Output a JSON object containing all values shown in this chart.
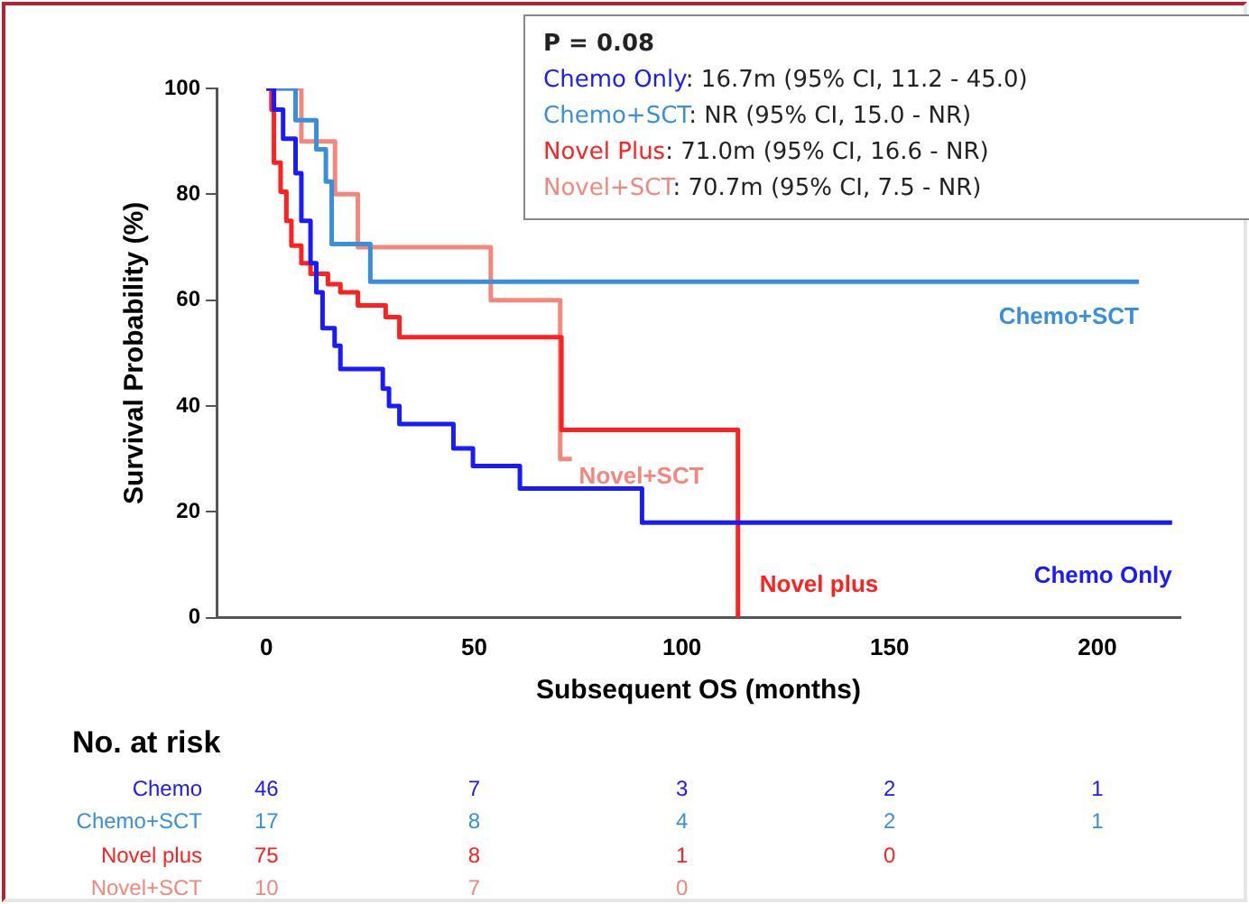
{
  "chart_data": {
    "type": "step",
    "xlabel": "Subsequent OS (months)",
    "ylabel": "Survival Probability (%)",
    "xlim": [
      -12,
      220
    ],
    "xticks": [
      0,
      50,
      100,
      150,
      200
    ],
    "ylim": [
      0,
      100
    ],
    "yticks": [
      0,
      20,
      40,
      60,
      80,
      100
    ],
    "grid": false,
    "legend": false,
    "series": [
      {
        "name": "Chemo Only",
        "color": "#1a1aff",
        "x": [
          0,
          1.8,
          4,
          7,
          8.4,
          10.6,
          12,
          13.5,
          16.4,
          17.8,
          28,
          29.5,
          32,
          45,
          49.7,
          61,
          90.4,
          218
        ],
        "values": [
          100,
          96,
          90.5,
          84,
          75,
          67,
          61.5,
          54.7,
          51.4,
          47,
          43.3,
          40,
          36.6,
          32,
          28.7,
          24.4,
          18,
          18
        ]
      },
      {
        "name": "Chemo+SCT",
        "color": "#3a8fdc",
        "x": [
          0,
          7,
          12,
          14.3,
          15.7,
          25,
          210
        ],
        "values": [
          100,
          94,
          88.5,
          82.4,
          70.6,
          63.5,
          63.5
        ]
      },
      {
        "name": "Novel plus",
        "color": "#ff2020",
        "x": [
          0,
          1.2,
          1.8,
          3.4,
          4.8,
          6,
          8.4,
          10.6,
          14.8,
          17.8,
          22,
          28.7,
          32,
          71,
          113.5
        ],
        "values": [
          100,
          96,
          86,
          80.5,
          75,
          70.3,
          67,
          65,
          63,
          61.5,
          59,
          56.8,
          53,
          35.5,
          0
        ]
      },
      {
        "name": "Novel+SCT",
        "color": "#f4877c",
        "x": [
          0,
          8.4,
          16.5,
          22,
          54,
          70.7,
          73.5
        ],
        "values": [
          100,
          90,
          80,
          70,
          60,
          30,
          30
        ]
      }
    ],
    "annotations": [
      "P = 0.08",
      "Chemo Only: 16.7m (95% CI, 11.2 - 45.0)",
      "Chemo+SCT:  NR (95% CI, 15.0 - NR)",
      "Novel Plus: 71.0m (95% CI, 16.6 - NR)",
      "Novel+SCT: 70.7m (95% CI, 7.5 - NR)",
      "No. at risk",
      "Chemo",
      "46",
      "7",
      "3",
      "2",
      "1",
      "Chemo+SCT",
      "17",
      "8",
      "4",
      "2",
      "1",
      "Novel plus",
      "75",
      "8",
      "1",
      "0",
      "Novel+SCT",
      "10",
      "7",
      "0"
    ]
  }
}
